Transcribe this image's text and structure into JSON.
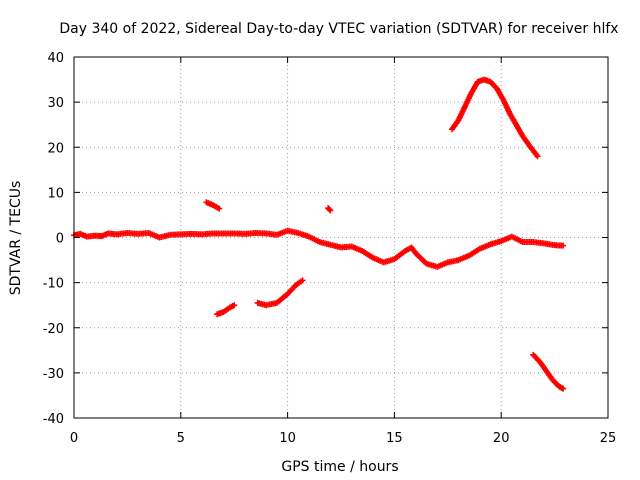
{
  "chart_data": {
    "type": "scatter",
    "title": "Day 340 of 2022, Sidereal Day-to-day VTEC variation (SDTVAR) for receiver hlfx",
    "xlabel": "GPS time / hours",
    "ylabel": "SDTVAR / TECUs",
    "xlim": [
      0,
      25
    ],
    "ylim": [
      -40,
      40
    ],
    "xticks": [
      0,
      5,
      10,
      15,
      20,
      25
    ],
    "yticks": [
      -40,
      -30,
      -20,
      -10,
      0,
      10,
      20,
      30,
      40
    ],
    "grid": true,
    "legend": "none",
    "series_color": "#ff0000",
    "series": [
      {
        "name": "main",
        "points": [
          [
            0.0,
            0.5
          ],
          [
            0.3,
            0.8
          ],
          [
            0.6,
            0.2
          ],
          [
            1.0,
            0.4
          ],
          [
            1.3,
            0.3
          ],
          [
            1.6,
            0.9
          ],
          [
            2.0,
            0.7
          ],
          [
            2.5,
            1.0
          ],
          [
            3.0,
            0.8
          ],
          [
            3.5,
            1.0
          ],
          [
            4.0,
            0.0
          ],
          [
            4.5,
            0.6
          ],
          [
            5.0,
            0.7
          ],
          [
            5.5,
            0.8
          ],
          [
            6.0,
            0.7
          ],
          [
            6.5,
            0.9
          ],
          [
            7.0,
            0.9
          ],
          [
            7.5,
            0.9
          ],
          [
            8.0,
            0.8
          ],
          [
            8.5,
            1.0
          ],
          [
            9.0,
            0.9
          ],
          [
            9.5,
            0.6
          ],
          [
            10.0,
            1.5
          ],
          [
            10.5,
            1.0
          ],
          [
            11.0,
            0.2
          ],
          [
            11.5,
            -1.0
          ],
          [
            12.0,
            -1.6
          ],
          [
            12.5,
            -2.2
          ],
          [
            13.0,
            -2.0
          ],
          [
            13.5,
            -3.0
          ],
          [
            14.0,
            -4.5
          ],
          [
            14.5,
            -5.5
          ],
          [
            15.0,
            -4.8
          ],
          [
            15.5,
            -3.0
          ],
          [
            15.8,
            -2.2
          ],
          [
            16.0,
            -3.5
          ],
          [
            16.5,
            -5.8
          ],
          [
            17.0,
            -6.5
          ],
          [
            17.5,
            -5.5
          ],
          [
            18.0,
            -5.0
          ],
          [
            18.5,
            -4.0
          ],
          [
            19.0,
            -2.5
          ],
          [
            19.5,
            -1.5
          ],
          [
            20.0,
            -0.8
          ],
          [
            20.5,
            0.2
          ],
          [
            21.0,
            -1.0
          ],
          [
            21.5,
            -1.0
          ],
          [
            22.0,
            -1.3
          ],
          [
            22.5,
            -1.7
          ],
          [
            22.9,
            -1.8
          ]
        ]
      },
      {
        "name": "arc-rise",
        "points": [
          [
            17.7,
            24.0
          ],
          [
            18.0,
            26.0
          ],
          [
            18.3,
            29.0
          ],
          [
            18.6,
            32.0
          ],
          [
            18.9,
            34.5
          ],
          [
            19.2,
            35.0
          ],
          [
            19.5,
            34.5
          ],
          [
            19.8,
            33.0
          ],
          [
            20.1,
            30.5
          ],
          [
            20.4,
            27.5
          ],
          [
            20.7,
            25.0
          ],
          [
            21.0,
            22.5
          ],
          [
            21.3,
            20.5
          ],
          [
            21.7,
            18.0
          ]
        ]
      },
      {
        "name": "arc-low-1",
        "points": [
          [
            6.7,
            -17.0
          ],
          [
            7.0,
            -16.5
          ],
          [
            7.3,
            -15.5
          ],
          [
            7.5,
            -15.0
          ]
        ]
      },
      {
        "name": "arc-low-2",
        "points": [
          [
            8.6,
            -14.5
          ],
          [
            9.0,
            -15.0
          ],
          [
            9.5,
            -14.5
          ],
          [
            10.0,
            -12.5
          ],
          [
            10.4,
            -10.5
          ],
          [
            10.7,
            -9.5
          ]
        ]
      },
      {
        "name": "arc-mid",
        "points": [
          [
            6.2,
            7.8
          ],
          [
            6.5,
            7.2
          ],
          [
            6.8,
            6.4
          ]
        ]
      },
      {
        "name": "spot",
        "points": [
          [
            11.9,
            6.5
          ],
          [
            12.0,
            6.0
          ]
        ]
      },
      {
        "name": "arc-fall",
        "points": [
          [
            21.5,
            -26.0
          ],
          [
            21.8,
            -27.5
          ],
          [
            22.1,
            -29.5
          ],
          [
            22.4,
            -31.5
          ],
          [
            22.7,
            -33.0
          ],
          [
            22.9,
            -33.5
          ]
        ]
      }
    ]
  }
}
